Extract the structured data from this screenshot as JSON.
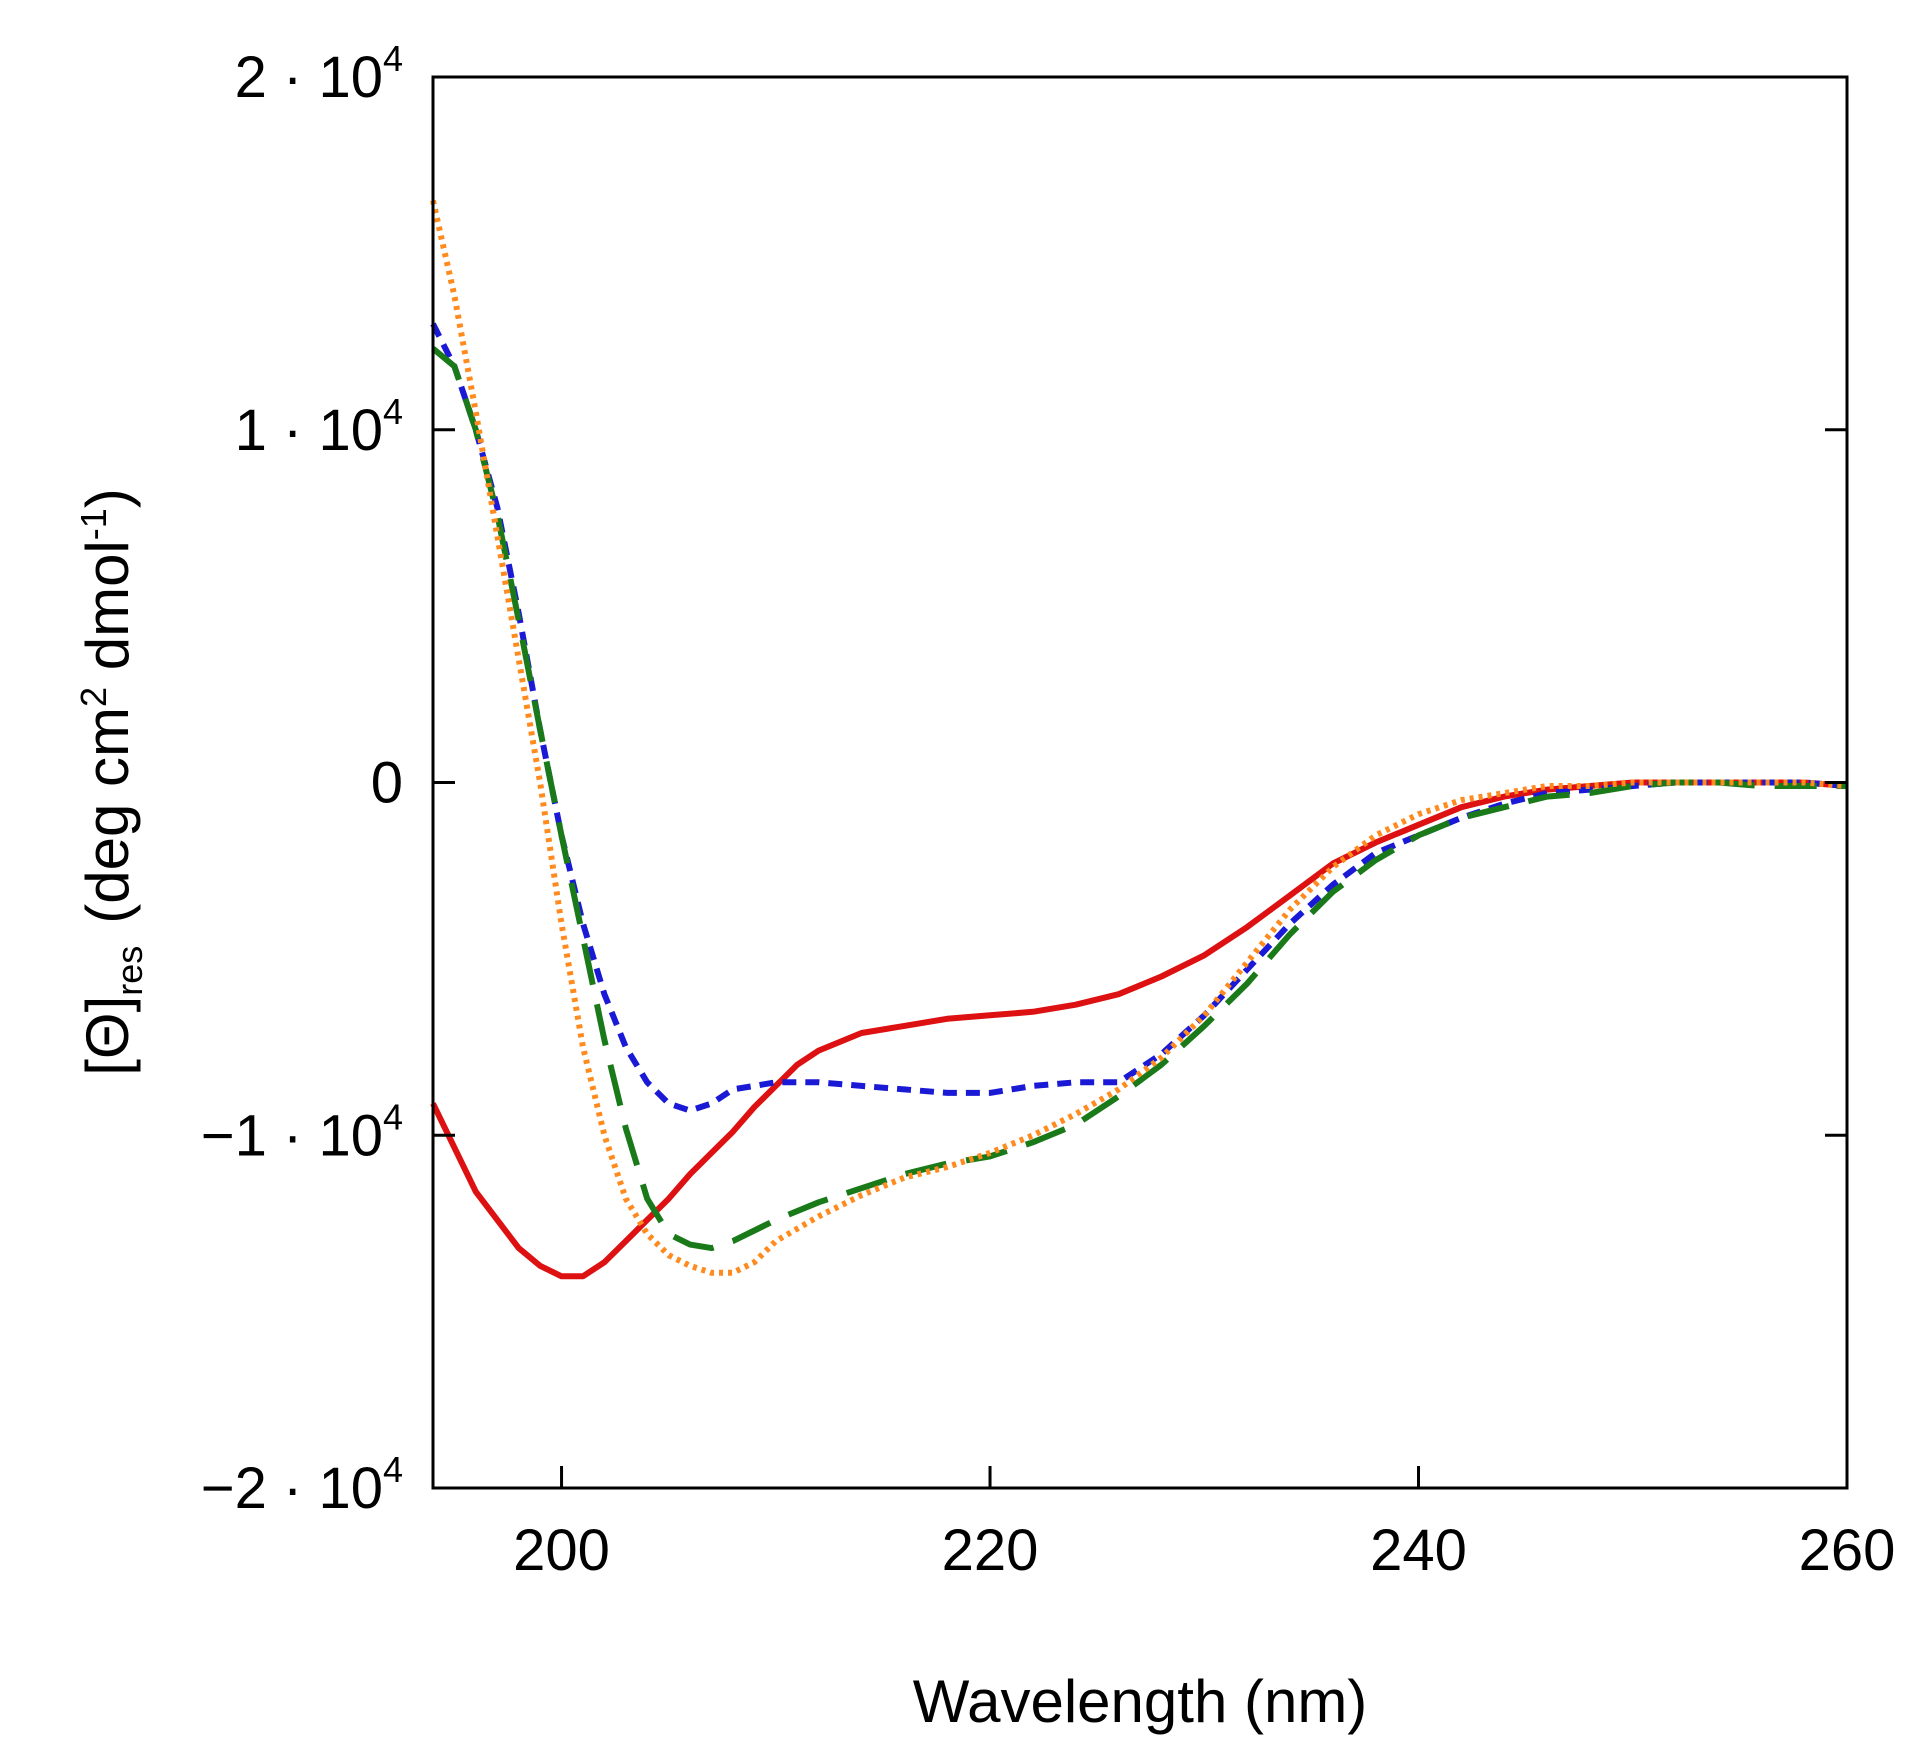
{
  "chart_data": {
    "type": "line",
    "title": "",
    "xlabel": "Wavelength (nm)",
    "ylabel": {
      "main": "[Θ]",
      "subscript": "res",
      "units_prefix": "(deg cm",
      "units_sup1": "2",
      "units_mid": " dmol",
      "units_sup2": "-1",
      "units_suffix": ")"
    },
    "xlim": [
      194,
      260
    ],
    "ylim": [
      -20000,
      20000
    ],
    "grid": false,
    "x_ticks": [
      {
        "value": 200,
        "label": "200"
      },
      {
        "value": 220,
        "label": "220"
      },
      {
        "value": 240,
        "label": "240"
      },
      {
        "value": 260,
        "label": "260"
      }
    ],
    "y_ticks": [
      {
        "value": 20000,
        "mantissa": "2 · 10",
        "exponent": "4"
      },
      {
        "value": 10000,
        "mantissa": "1 · 10",
        "exponent": "4"
      },
      {
        "value": 0,
        "mantissa": "0",
        "exponent": ""
      },
      {
        "value": -10000,
        "mantissa": "−1 · 10",
        "exponent": "4"
      },
      {
        "value": -20000,
        "mantissa": "−2 · 10",
        "exponent": "4"
      }
    ],
    "series": [
      {
        "name": "red-solid",
        "color": "#dd1111",
        "dash": "solid",
        "x": [
          194,
          196,
          198,
          199,
          200,
          201,
          202,
          203,
          204,
          205,
          206,
          207,
          208,
          209,
          210,
          211,
          212,
          214,
          216,
          218,
          220,
          222,
          224,
          226,
          228,
          230,
          232,
          234,
          236,
          238,
          240,
          242,
          244,
          246,
          248,
          250,
          252,
          254,
          256,
          258,
          260
        ],
        "y": [
          -9100,
          -11600,
          -13200,
          -13700,
          -14000,
          -14000,
          -13600,
          -13000,
          -12400,
          -11800,
          -11100,
          -10500,
          -9900,
          -9200,
          -8600,
          -8000,
          -7600,
          -7100,
          -6900,
          -6700,
          -6600,
          -6500,
          -6300,
          -6000,
          -5500,
          -4900,
          -4100,
          -3200,
          -2300,
          -1700,
          -1200,
          -700,
          -400,
          -200,
          -100,
          0,
          0,
          0,
          0,
          0,
          -100
        ]
      },
      {
        "name": "blue-short-dash",
        "color": "#1a1ad6",
        "dash": "short-dash",
        "x": [
          194,
          195,
          196,
          197,
          198,
          199,
          200,
          201,
          202,
          203,
          204,
          205,
          206,
          207,
          208,
          209,
          210,
          212,
          214,
          216,
          218,
          220,
          222,
          224,
          226,
          228,
          230,
          232,
          234,
          236,
          238,
          240,
          242,
          244,
          246,
          248,
          250,
          252,
          254,
          256,
          258,
          260
        ],
        "y": [
          13000,
          11800,
          10000,
          7800,
          4800,
          1500,
          -1500,
          -4000,
          -6000,
          -7500,
          -8500,
          -9100,
          -9300,
          -9100,
          -8700,
          -8600,
          -8500,
          -8500,
          -8600,
          -8700,
          -8800,
          -8800,
          -8600,
          -8500,
          -8500,
          -7700,
          -6600,
          -5300,
          -4000,
          -2900,
          -2000,
          -1500,
          -1000,
          -600,
          -300,
          -200,
          -100,
          0,
          0,
          0,
          0,
          -100
        ]
      },
      {
        "name": "green-long-dash",
        "color": "#1a7a1a",
        "dash": "long-dash",
        "x": [
          194,
          195,
          196,
          197,
          198,
          199,
          200,
          201,
          202,
          203,
          204,
          205,
          206,
          207,
          208,
          209,
          210,
          212,
          214,
          216,
          218,
          220,
          222,
          224,
          226,
          228,
          230,
          232,
          234,
          236,
          238,
          240,
          242,
          244,
          246,
          248,
          250,
          252,
          254,
          256,
          258,
          260
        ],
        "y": [
          12300,
          11800,
          10000,
          7600,
          4600,
          1500,
          -1500,
          -4400,
          -7300,
          -9800,
          -11800,
          -12800,
          -13100,
          -13200,
          -13000,
          -12700,
          -12400,
          -11900,
          -11500,
          -11100,
          -10800,
          -10600,
          -10200,
          -9700,
          -8900,
          -8000,
          -6900,
          -5700,
          -4300,
          -3100,
          -2200,
          -1500,
          -1000,
          -700,
          -400,
          -300,
          -100,
          0,
          0,
          -100,
          -100,
          -100
        ]
      },
      {
        "name": "orange-dotted",
        "color": "#ff8a1e",
        "dash": "dotted",
        "x": [
          194,
          195,
          196,
          197,
          198,
          199,
          200,
          201,
          202,
          203,
          204,
          205,
          206,
          207,
          208,
          209,
          210,
          212,
          214,
          216,
          218,
          220,
          222,
          224,
          226,
          228,
          230,
          232,
          234,
          236,
          238,
          240,
          242,
          244,
          246,
          248,
          250,
          252,
          254,
          256,
          258,
          260
        ],
        "y": [
          16500,
          13800,
          10500,
          7000,
          3500,
          0,
          -4000,
          -7500,
          -10000,
          -11800,
          -12800,
          -13400,
          -13700,
          -13900,
          -13900,
          -13600,
          -13000,
          -12300,
          -11700,
          -11200,
          -10900,
          -10500,
          -10000,
          -9400,
          -8700,
          -7800,
          -6600,
          -5100,
          -3600,
          -2400,
          -1500,
          -900,
          -500,
          -300,
          -100,
          -100,
          0,
          0,
          0,
          0,
          0,
          -100
        ]
      }
    ]
  }
}
